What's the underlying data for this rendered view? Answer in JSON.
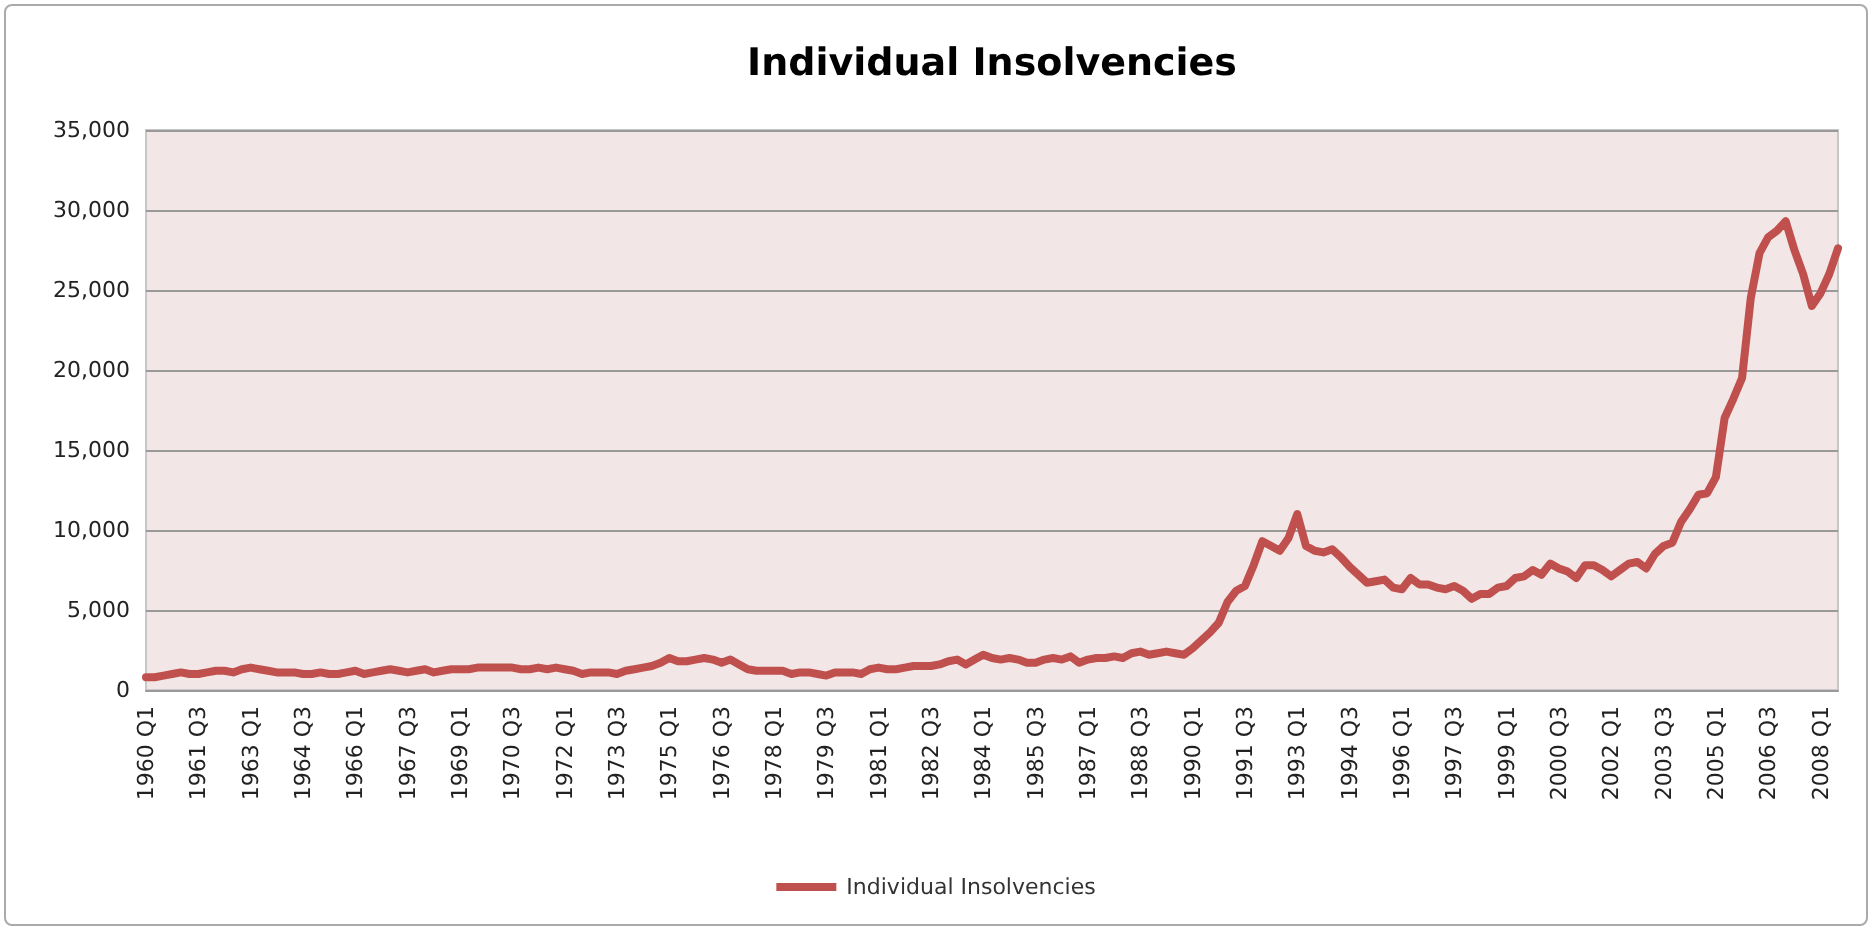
{
  "chart_data": {
    "type": "line",
    "title": "Individual Insolvencies",
    "categories": [
      "1960 Q1",
      null,
      null,
      null,
      null,
      null,
      "1961 Q3",
      null,
      null,
      null,
      null,
      null,
      "1963 Q1",
      null,
      null,
      null,
      null,
      null,
      "1964 Q3",
      null,
      null,
      null,
      null,
      null,
      "1966 Q1",
      null,
      null,
      null,
      null,
      null,
      "1967 Q3",
      null,
      null,
      null,
      null,
      null,
      "1969 Q1",
      null,
      null,
      null,
      null,
      null,
      "1970 Q3",
      null,
      null,
      null,
      null,
      null,
      "1972 Q1",
      null,
      null,
      null,
      null,
      null,
      "1973 Q3",
      null,
      null,
      null,
      null,
      null,
      "1975 Q1",
      null,
      null,
      null,
      null,
      null,
      "1976 Q3",
      null,
      null,
      null,
      null,
      null,
      "1978 Q1",
      null,
      null,
      null,
      null,
      null,
      "1979 Q3",
      null,
      null,
      null,
      null,
      null,
      "1981 Q1",
      null,
      null,
      null,
      null,
      null,
      "1982 Q3",
      null,
      null,
      null,
      null,
      null,
      "1984 Q1",
      null,
      null,
      null,
      null,
      null,
      "1985 Q3",
      null,
      null,
      null,
      null,
      null,
      "1987 Q1",
      null,
      null,
      null,
      null,
      null,
      "1988 Q3",
      null,
      null,
      null,
      null,
      null,
      "1990 Q1",
      null,
      null,
      null,
      null,
      null,
      "1991 Q3",
      null,
      null,
      null,
      null,
      null,
      "1993 Q1",
      null,
      null,
      null,
      null,
      null,
      "1994 Q3",
      null,
      null,
      null,
      null,
      null,
      "1996 Q1",
      null,
      null,
      null,
      null,
      null,
      "1997 Q3",
      null,
      null,
      null,
      null,
      null,
      "1999 Q1",
      null,
      null,
      null,
      null,
      null,
      "2000 Q3",
      null,
      null,
      null,
      null,
      null,
      "2002 Q1",
      null,
      null,
      null,
      null,
      null,
      "2003 Q3",
      null,
      null,
      null,
      null,
      null,
      "2005 Q1",
      null,
      null,
      null,
      null,
      null,
      "2006 Q3",
      null,
      null,
      null,
      null,
      null,
      "2008 Q1",
      null,
      null
    ],
    "series": [
      {
        "name": "Individual Insolvencies",
        "color": "#c0504d",
        "values": [
          800,
          800,
          900,
          1000,
          1100,
          1000,
          1000,
          1100,
          1200,
          1200,
          1100,
          1300,
          1400,
          1300,
          1200,
          1100,
          1100,
          1100,
          1000,
          1000,
          1100,
          1000,
          1000,
          1100,
          1200,
          1000,
          1100,
          1200,
          1300,
          1200,
          1100,
          1200,
          1300,
          1100,
          1200,
          1300,
          1300,
          1300,
          1400,
          1400,
          1400,
          1400,
          1400,
          1300,
          1300,
          1400,
          1300,
          1400,
          1300,
          1200,
          1000,
          1100,
          1100,
          1100,
          1000,
          1200,
          1300,
          1400,
          1500,
          1700,
          2000,
          1800,
          1800,
          1900,
          2000,
          1900,
          1700,
          1900,
          1600,
          1300,
          1200,
          1200,
          1200,
          1200,
          1000,
          1100,
          1100,
          1000,
          900,
          1100,
          1100,
          1100,
          1000,
          1300,
          1400,
          1300,
          1300,
          1400,
          1500,
          1500,
          1500,
          1600,
          1800,
          1900,
          1600,
          1900,
          2200,
          2000,
          1900,
          2000,
          1900,
          1700,
          1700,
          1900,
          2000,
          1900,
          2100,
          1700,
          1900,
          2000,
          2000,
          2100,
          2000,
          2300,
          2400,
          2200,
          2300,
          2400,
          2300,
          2200,
          2600,
          3100,
          3600,
          4200,
          5500,
          6200,
          6500,
          7800,
          9300,
          9000,
          8700,
          9500,
          11000,
          9000,
          8700,
          8600,
          8800,
          8300,
          7700,
          7200,
          6700,
          6800,
          6900,
          6400,
          6300,
          7000,
          6600,
          6600,
          6400,
          6300,
          6500,
          6200,
          5700,
          6000,
          6000,
          6400,
          6500,
          7000,
          7100,
          7500,
          7200,
          7900,
          7600,
          7400,
          7000,
          7800,
          7800,
          7500,
          7100,
          7500,
          7900,
          8000,
          7600,
          8500,
          9000,
          9200,
          10500,
          11300,
          12200,
          12300,
          13300,
          17000,
          18200,
          19500,
          24500,
          27300,
          28300,
          28700,
          29300,
          27500,
          26000,
          24000,
          24800,
          26000,
          27600
        ]
      }
    ],
    "ylim": [
      0,
      35000
    ],
    "yticks": [
      0,
      {
        "value": 5000,
        "label": "5,000"
      },
      {
        "value": 10000,
        "label": "10,000"
      },
      {
        "value": 15000,
        "label": "15,000"
      },
      {
        "value": 20000,
        "label": "20,000"
      },
      {
        "value": 25000,
        "label": "25,000"
      },
      {
        "value": 30000,
        "label": "30,000"
      },
      {
        "value": 35000,
        "label": "35,000"
      }
    ],
    "grid": "y",
    "legend": "bottom",
    "marker": "none",
    "line_style": "solid"
  }
}
